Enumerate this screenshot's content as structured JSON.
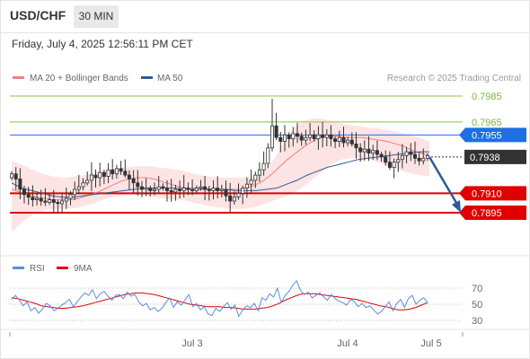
{
  "header": {
    "symbol": "USD/CHF",
    "timeframe": "30 MIN",
    "datetime": "Friday, July 4, 2025 12:56:11 PM CET"
  },
  "chart_data": [
    {
      "type": "candlestick",
      "title": "USD/CHF",
      "legend": [
        {
          "name": "MA 20 + Bollinger Bands",
          "color": "#f08080"
        },
        {
          "name": "MA 50",
          "color": "#2e5c9a"
        }
      ],
      "legend_placement": "top-left",
      "credit": "Research © 2025 Trading Central",
      "ylim": [
        0.7872,
        0.7995
      ],
      "x_ticks": [
        "Jul 3",
        "Jul 4",
        "Jul 5"
      ],
      "levels": [
        {
          "value": 0.7985,
          "label": "0.7985",
          "kind": "resistance",
          "color": "#8bc34a"
        },
        {
          "value": 0.7965,
          "label": "0.7965",
          "kind": "resistance",
          "color": "#8bc34a"
        },
        {
          "value": 0.7955,
          "label": "0.7955",
          "kind": "pivot",
          "color": "#1e6fe0"
        },
        {
          "value": 0.7938,
          "label": "0.7938",
          "kind": "last-price",
          "color": "#333333"
        },
        {
          "value": 0.791,
          "label": "0.7910",
          "kind": "support",
          "color": "#e00000"
        },
        {
          "value": 0.7895,
          "label": "0.7895",
          "kind": "support",
          "color": "#e00000"
        }
      ],
      "close": [
        0.7925,
        0.7921,
        0.7913,
        0.7909,
        0.7907,
        0.7905,
        0.7906,
        0.7904,
        0.7903,
        0.7905,
        0.7903,
        0.7902,
        0.7904,
        0.7906,
        0.7909,
        0.7913,
        0.7915,
        0.7918,
        0.792,
        0.7924,
        0.7922,
        0.7926,
        0.7923,
        0.7928,
        0.7925,
        0.7929,
        0.7927,
        0.7924,
        0.7921,
        0.7918,
        0.7915,
        0.7913,
        0.7914,
        0.7912,
        0.7913,
        0.7915,
        0.7914,
        0.7912,
        0.7911,
        0.7913,
        0.7912,
        0.7914,
        0.7913,
        0.7912,
        0.7914,
        0.7915,
        0.7913,
        0.7912,
        0.7914,
        0.7912,
        0.7913,
        0.7908,
        0.7904,
        0.7907,
        0.791,
        0.7914,
        0.7917,
        0.792,
        0.7924,
        0.7928,
        0.7933,
        0.7945,
        0.7962,
        0.7953,
        0.795,
        0.7955,
        0.7952,
        0.7956,
        0.7954,
        0.7951,
        0.7953,
        0.7955,
        0.7952,
        0.7955,
        0.7953,
        0.7955,
        0.7952,
        0.795,
        0.7953,
        0.7949,
        0.7951,
        0.7948,
        0.7945,
        0.7942,
        0.7944,
        0.7941,
        0.7943,
        0.794,
        0.7938,
        0.7934,
        0.793,
        0.7934,
        0.7936,
        0.7939,
        0.7942,
        0.794,
        0.7937,
        0.7935,
        0.7937,
        0.7939
      ],
      "ma20": [
        0.7913,
        0.7911,
        0.7909,
        0.7907,
        0.7906,
        0.7905,
        0.7905,
        0.7905,
        0.7906,
        0.7908,
        0.791,
        0.7913,
        0.7916,
        0.7919,
        0.7921,
        0.7922,
        0.7922,
        0.7921,
        0.7919,
        0.7917,
        0.7915,
        0.7914,
        0.7914,
        0.7914,
        0.7913,
        0.7913,
        0.7913,
        0.7913,
        0.7914,
        0.7916,
        0.7919,
        0.7924,
        0.793,
        0.7936,
        0.7941,
        0.7946,
        0.795,
        0.7953,
        0.7954,
        0.7954,
        0.7953,
        0.7953,
        0.7953,
        0.7952,
        0.7951,
        0.795,
        0.7948,
        0.7946,
        0.7943,
        0.7941,
        0.7939
      ],
      "ma50": [
        0.7918,
        0.7914,
        0.7912,
        0.791,
        0.7908,
        0.7907,
        0.7907,
        0.7908,
        0.7909,
        0.791,
        0.7911,
        0.7912,
        0.7913,
        0.7914,
        0.7914,
        0.7914,
        0.7914,
        0.7913,
        0.7913,
        0.7913,
        0.7913,
        0.7913,
        0.7912,
        0.7912,
        0.7912,
        0.7913,
        0.7914,
        0.7917,
        0.792,
        0.7924,
        0.7927,
        0.793,
        0.7932,
        0.7934,
        0.7936,
        0.7937,
        0.7938,
        0.7939,
        0.794,
        0.7941,
        0.7942,
        0.7942
      ],
      "bb_upper": [
        0.7935,
        0.7932,
        0.7928,
        0.7925,
        0.7923,
        0.7922,
        0.7923,
        0.7924,
        0.7926,
        0.7928,
        0.7929,
        0.793,
        0.7931,
        0.7931,
        0.793,
        0.7929,
        0.7928,
        0.7926,
        0.7924,
        0.7923,
        0.7922,
        0.7922,
        0.7922,
        0.7923,
        0.7926,
        0.7935,
        0.7948,
        0.796,
        0.7966,
        0.7968,
        0.7967,
        0.7965,
        0.7963,
        0.7962,
        0.7961,
        0.796,
        0.7959,
        0.7957,
        0.7955,
        0.7953,
        0.795
      ],
      "bb_lower": [
        0.788,
        0.7888,
        0.7894,
        0.7897,
        0.7898,
        0.7898,
        0.7899,
        0.7901,
        0.7904,
        0.7907,
        0.7908,
        0.7909,
        0.7908,
        0.7907,
        0.7906,
        0.7905,
        0.7904,
        0.7902,
        0.79,
        0.7899,
        0.7898,
        0.7898,
        0.7899,
        0.7902,
        0.7905,
        0.7908,
        0.7912,
        0.7918,
        0.7925,
        0.7932,
        0.7936,
        0.7937,
        0.7937,
        0.7935,
        0.7932,
        0.7929,
        0.7926,
        0.7924,
        0.7923
      ],
      "forecast": {
        "from": 0.7938,
        "to": 0.7895,
        "direction": "down",
        "color": "#2e5c9a"
      }
    },
    {
      "type": "line",
      "legend": [
        {
          "name": "RSI",
          "color": "#5b8dd9"
        },
        {
          "name": "9MA",
          "color": "#e00000"
        }
      ],
      "ylim": [
        20,
        85
      ],
      "y_ticks": [
        70,
        50,
        30
      ],
      "rsi": [
        56,
        61,
        55,
        48,
        53,
        42,
        46,
        39,
        44,
        51,
        48,
        42,
        45,
        49,
        52,
        56,
        47,
        53,
        59,
        64,
        61,
        68,
        57,
        63,
        66,
        60,
        55,
        61,
        62,
        57,
        65,
        60,
        62,
        53,
        48,
        51,
        43,
        46,
        41,
        45,
        52,
        58,
        46,
        53,
        49,
        55,
        62,
        47,
        51,
        43,
        47,
        38,
        36,
        45,
        41,
        47,
        52,
        44,
        49,
        35,
        43,
        48,
        46,
        51,
        42,
        58,
        55,
        63,
        59,
        70,
        52,
        61,
        66,
        74,
        79,
        67,
        62,
        65,
        58,
        61,
        64,
        59,
        55,
        62,
        57,
        54,
        52,
        49,
        56,
        53,
        47,
        51,
        46,
        48,
        43,
        38,
        41,
        47,
        53,
        42,
        51,
        56,
        46,
        57,
        61,
        50,
        55,
        58,
        52
      ],
      "ma9": [
        58,
        57,
        55,
        53,
        51,
        48,
        47,
        46,
        45,
        45,
        46,
        47,
        48,
        50,
        52,
        54,
        56,
        58,
        60,
        62,
        63,
        64,
        64,
        63,
        62,
        60,
        58,
        56,
        54,
        52,
        50,
        49,
        48,
        47,
        47,
        47,
        46,
        46,
        45,
        44,
        44,
        44,
        45,
        46,
        48,
        51,
        55,
        58,
        61,
        63,
        63,
        63,
        62,
        61,
        60,
        59,
        58,
        57,
        56,
        54,
        52,
        50,
        48,
        47,
        45,
        43,
        43,
        44,
        46,
        49,
        52
      ]
    }
  ],
  "footer": {
    "x_ticks": [
      "Jul 3",
      "Jul 4",
      "Jul 5"
    ]
  }
}
